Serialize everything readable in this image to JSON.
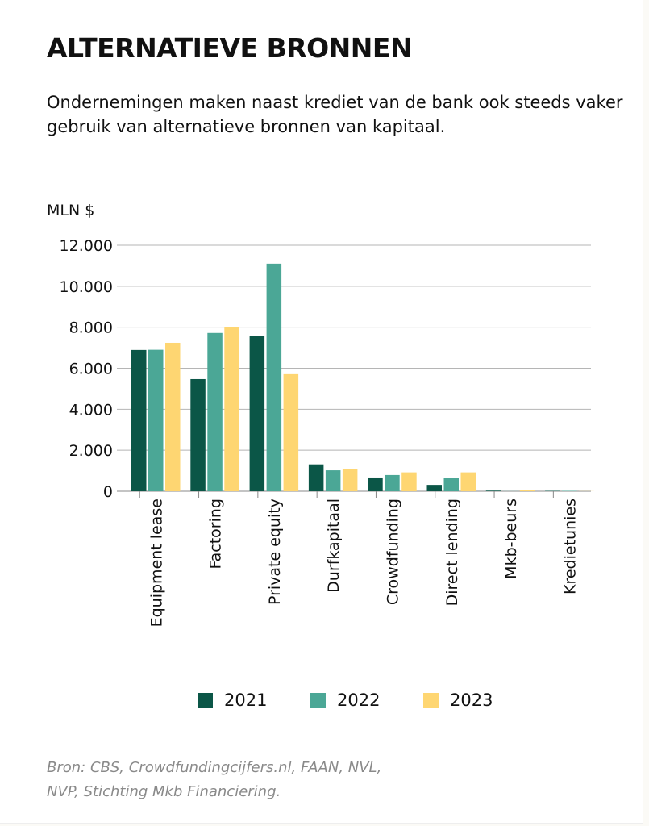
{
  "title": "ALTERNATIEVE BRONNEN",
  "subtitle": "Ondernemingen maken naast krediet van de bank ook steeds vaker gebruik van alternatieve bronnen van kapitaal.",
  "source": "Bron: CBS, Crowdfundingcijfers.nl, FAAN, NVL, NVP, Stichting Mkb Financiering.",
  "chart_data": {
    "type": "bar",
    "ylabel": "MLN $",
    "ylim": [
      0,
      12000
    ],
    "yticks": [
      0,
      2000,
      4000,
      6000,
      8000,
      10000,
      12000
    ],
    "ytick_labels": [
      "0",
      "2.000",
      "4.000",
      "6.000",
      "8.000",
      "10.000",
      "12.000"
    ],
    "grid": true,
    "legend_position": "bottom",
    "categories": [
      "Equipment lease",
      "Factoring",
      "Private equity",
      "Durfkapitaal",
      "Crowdfunding",
      "Direct lending",
      "Mkb-beurs",
      "Kredietunies"
    ],
    "series": [
      {
        "name": "2021",
        "color": "#0b5647",
        "values": [
          6890,
          5470,
          7560,
          1310,
          670,
          310,
          30,
          20
        ]
      },
      {
        "name": "2022",
        "color": "#4ba796",
        "values": [
          6900,
          7720,
          11100,
          1020,
          790,
          650,
          5,
          20
        ]
      },
      {
        "name": "2023",
        "color": "#fed672",
        "values": [
          7240,
          7990,
          5710,
          1100,
          920,
          920,
          50,
          5
        ]
      }
    ]
  }
}
